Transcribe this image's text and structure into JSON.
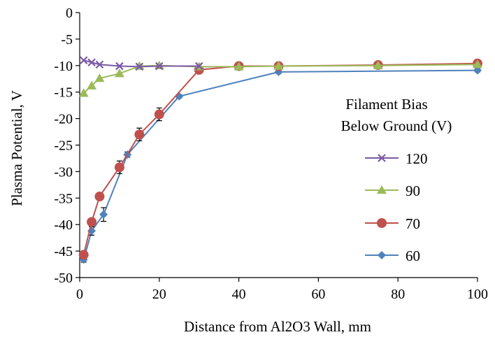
{
  "chart_data": {
    "type": "line",
    "xlabel": "Distance from Al2O3 Wall, mm",
    "ylabel": "Plasma Potential, V",
    "xlim": [
      0,
      100
    ],
    "ylim": [
      -50,
      0
    ],
    "x_ticks": [
      "0",
      "20",
      "40",
      "60",
      "80",
      "100"
    ],
    "y_ticks": [
      "0",
      "-5",
      "-10",
      "-15",
      "-20",
      "-25",
      "-30",
      "-35",
      "-40",
      "-45",
      "-50"
    ],
    "grid": "none",
    "legend": {
      "title_lines": [
        "Filament Bias",
        "Below Ground (V)"
      ],
      "placement": "right"
    },
    "series": [
      {
        "name": "120",
        "color": "#7b5aa6",
        "marker": "x",
        "x": [
          1,
          3,
          5,
          10,
          15,
          20,
          30
        ],
        "y": [
          -9.0,
          -9.4,
          -9.8,
          -10.1,
          -10.2,
          -10.1,
          -10.1
        ]
      },
      {
        "name": "90",
        "color": "#9bbb59",
        "marker": "triangle",
        "x": [
          1,
          3,
          5,
          10,
          15,
          20,
          30,
          40,
          50,
          75,
          100
        ],
        "y": [
          -15.2,
          -13.8,
          -12.4,
          -11.5,
          -10.1,
          -10.0,
          -10.2,
          -10.2,
          -10.1,
          -10.0,
          -9.8
        ]
      },
      {
        "name": "70",
        "color": "#c0504d",
        "marker": "circle",
        "x": [
          1,
          3,
          5,
          10,
          15,
          20,
          30,
          40,
          50,
          75,
          100
        ],
        "y": [
          -45.7,
          -39.5,
          -34.7,
          -29.2,
          -23.0,
          -19.2,
          -10.8,
          -10.1,
          -10.1,
          -9.9,
          -9.6
        ],
        "yerr": [
          0.0,
          0.5,
          0.5,
          1.2,
          1.2,
          1.2,
          0.5,
          0.5,
          0.5,
          0.3,
          0.3
        ]
      },
      {
        "name": "60",
        "color": "#4f81bd",
        "marker": "diamond",
        "x": [
          1,
          3,
          6,
          12,
          25,
          50,
          100
        ],
        "y": [
          -46.6,
          -41.2,
          -38.1,
          -26.8,
          -15.8,
          -11.2,
          -10.9
        ],
        "yerr": [
          0.5,
          0.8,
          1.3,
          0.5,
          0.3,
          0.3,
          0.3
        ]
      }
    ]
  }
}
